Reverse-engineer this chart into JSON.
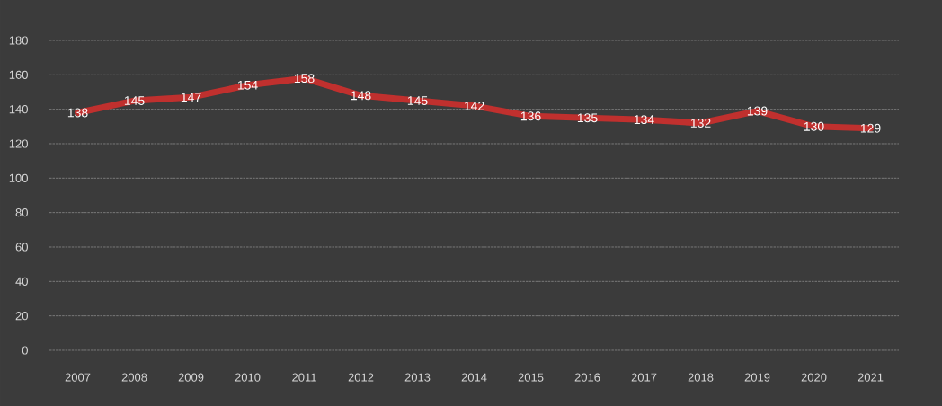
{
  "chart_data": {
    "type": "line",
    "categories": [
      "2007",
      "2008",
      "2009",
      "2010",
      "2011",
      "2012",
      "2013",
      "2014",
      "2015",
      "2016",
      "2017",
      "2018",
      "2019",
      "2020",
      "2021"
    ],
    "series": [
      {
        "color": "#c0302e",
        "values": [
          138,
          145,
          147,
          154,
          158,
          148,
          145,
          142,
          136,
          135,
          134,
          132,
          139,
          130,
          129
        ]
      }
    ],
    "ylim": [
      0,
      180
    ],
    "yticks": [
      0,
      20,
      40,
      60,
      80,
      100,
      120,
      140,
      160,
      180
    ],
    "grid": "y",
    "data_labels": true,
    "marker": "none",
    "line_style": "solid"
  }
}
